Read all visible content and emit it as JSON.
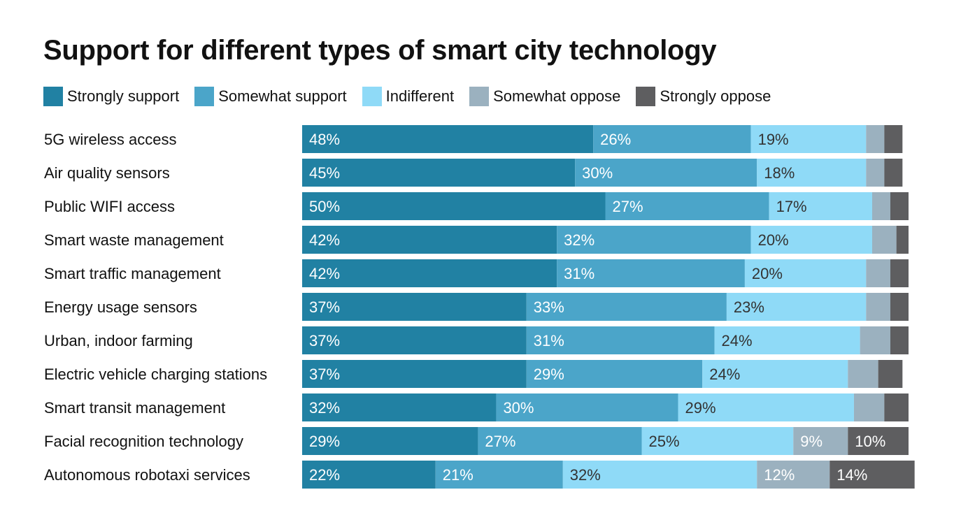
{
  "chart_data": {
    "type": "bar",
    "orientation": "horizontal",
    "stacked": true,
    "title": "Support for different types of smart city technology",
    "legend_position": "top-left",
    "grid": false,
    "xlim": [
      0,
      100
    ],
    "categories": [
      "5G wireless access",
      "Air quality sensors",
      "Public WIFI access",
      "Smart waste management",
      "Smart traffic management",
      "Energy usage sensors",
      "Urban, indoor farming",
      "Electric vehicle charging stations",
      "Smart transit management",
      "Facial recognition technology",
      "Autonomous robotaxi services"
    ],
    "series": [
      {
        "name": "Strongly support",
        "color": "#2181a3",
        "label_color": "#ffffff",
        "values": [
          48,
          45,
          50,
          42,
          42,
          37,
          37,
          37,
          32,
          29,
          22
        ]
      },
      {
        "name": "Somewhat support",
        "color": "#4ba5c9",
        "label_color": "#ffffff",
        "values": [
          26,
          30,
          27,
          32,
          31,
          33,
          31,
          29,
          30,
          27,
          21
        ]
      },
      {
        "name": "Indifferent",
        "color": "#8fdaf7",
        "label_color": "#333333",
        "values": [
          19,
          18,
          17,
          20,
          20,
          23,
          24,
          24,
          29,
          25,
          32
        ]
      },
      {
        "name": "Somewhat oppose",
        "color": "#9bb1bf",
        "label_color": "#ffffff",
        "values": [
          3,
          3,
          3,
          4,
          4,
          4,
          5,
          5,
          5,
          9,
          12
        ]
      },
      {
        "name": "Strongly oppose",
        "color": "#5e5e60",
        "label_color": "#ffffff",
        "values": [
          3,
          3,
          3,
          2,
          3,
          3,
          3,
          4,
          4,
          10,
          14
        ]
      }
    ],
    "show_label_min": 6
  }
}
